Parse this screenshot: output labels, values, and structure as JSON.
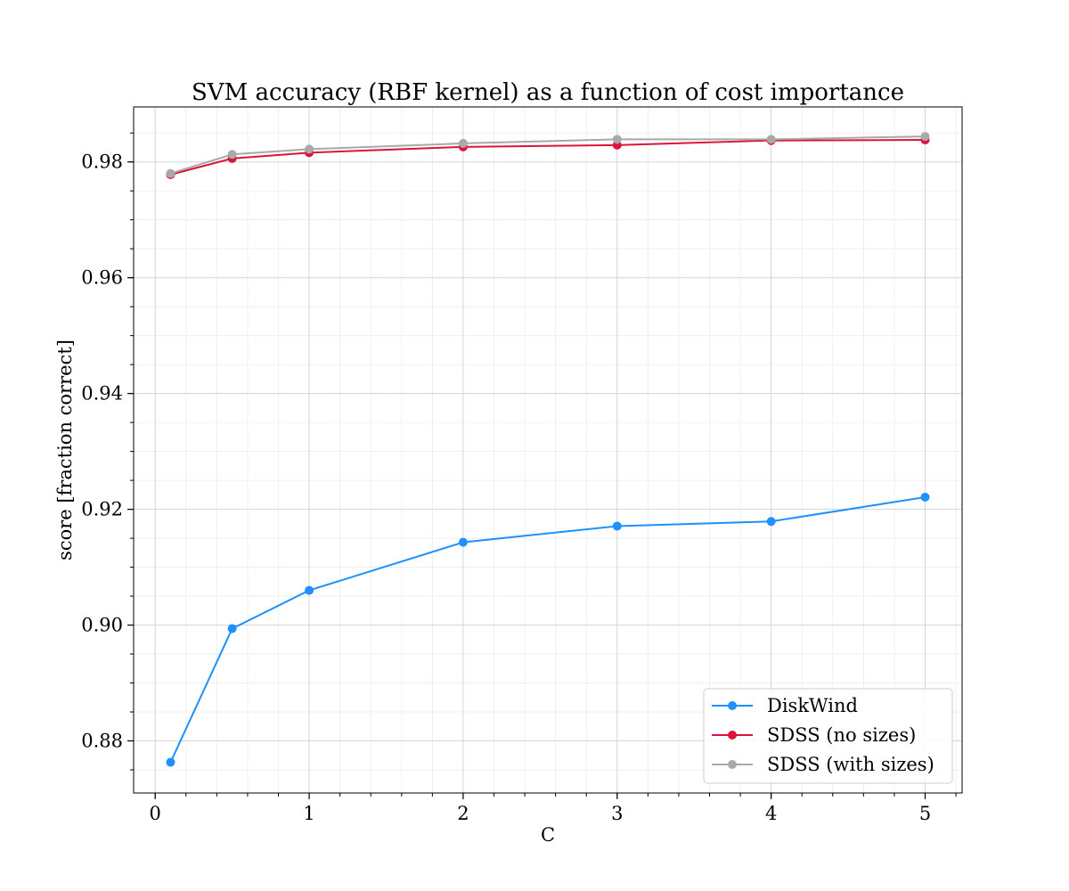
{
  "chart_data": {
    "type": "line",
    "title": "SVM accuracy (RBF kernel) as a function of cost importance",
    "xlabel": "C",
    "ylabel": "score [fraction correct]",
    "xlim": [
      -0.14,
      5.24
    ],
    "ylim": [
      0.871,
      0.9895
    ],
    "x_ticks": [
      0,
      1,
      2,
      3,
      4,
      5
    ],
    "x_tick_labels": [
      "0",
      "1",
      "2",
      "3",
      "4",
      "5"
    ],
    "y_ticks": [
      0.88,
      0.9,
      0.92,
      0.94,
      0.96,
      0.98
    ],
    "y_tick_labels": [
      "0.88",
      "0.90",
      "0.92",
      "0.94",
      "0.96",
      "0.98"
    ],
    "grid": true,
    "minor_grid": true,
    "legend_position": "bottom-right",
    "x": [
      0.1,
      0.5,
      1,
      2,
      3,
      4,
      5
    ],
    "series": [
      {
        "name": "DiskWind",
        "color": "#1e90ff",
        "values": [
          0.8763,
          0.8994,
          0.906,
          0.9143,
          0.9171,
          0.9179,
          0.9221
        ]
      },
      {
        "name": "SDSS (no sizes)",
        "color": "#dc143c",
        "values": [
          0.9778,
          0.9806,
          0.9816,
          0.9826,
          0.9829,
          0.9837,
          0.9838
        ]
      },
      {
        "name": "SDSS (with sizes)",
        "color": "#a9a9a9",
        "values": [
          0.978,
          0.9813,
          0.9822,
          0.9832,
          0.9839,
          0.9839,
          0.9844
        ]
      }
    ]
  }
}
